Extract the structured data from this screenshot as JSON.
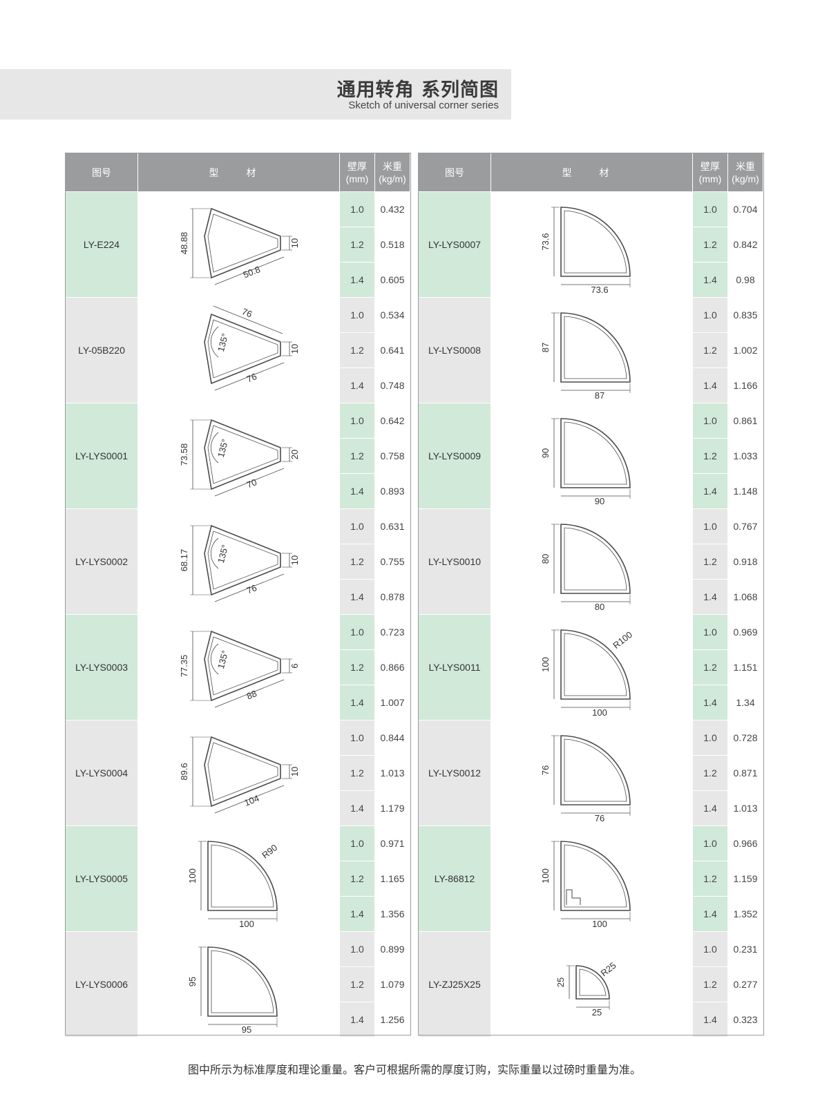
{
  "title": {
    "cn": "通用转角 系列简图",
    "en": "Sketch of universal corner series"
  },
  "headers": {
    "code": "图号",
    "shape": "型 材",
    "thickness": "壁厚",
    "thickness_unit": "(mm)",
    "weight": "米重",
    "weight_unit": "(kg/m)"
  },
  "left": [
    {
      "code": "LY-E224",
      "shape": "fan",
      "dims": {
        "h": "48.88",
        "w": "50.8",
        "tip": "10"
      },
      "rows": [
        {
          "t": "1.0",
          "w": "0.432"
        },
        {
          "t": "1.2",
          "w": "0.518"
        },
        {
          "t": "1.4",
          "w": "0.605"
        }
      ]
    },
    {
      "code": "LY-05B220",
      "shape": "fan",
      "dims": {
        "top": "76",
        "w": "76",
        "tip": "10",
        "angle": "135°"
      },
      "rows": [
        {
          "t": "1.0",
          "w": "0.534"
        },
        {
          "t": "1.2",
          "w": "0.641"
        },
        {
          "t": "1.4",
          "w": "0.748"
        }
      ]
    },
    {
      "code": "LY-LYS0001",
      "shape": "fan",
      "dims": {
        "h": "73.58",
        "w": "70",
        "tip": "20",
        "angle": "135°"
      },
      "rows": [
        {
          "t": "1.0",
          "w": "0.642"
        },
        {
          "t": "1.2",
          "w": "0.758"
        },
        {
          "t": "1.4",
          "w": "0.893"
        }
      ]
    },
    {
      "code": "LY-LYS0002",
      "shape": "fan",
      "dims": {
        "h": "68.17",
        "w": "76",
        "tip": "10",
        "angle": "135°"
      },
      "rows": [
        {
          "t": "1.0",
          "w": "0.631"
        },
        {
          "t": "1.2",
          "w": "0.755"
        },
        {
          "t": "1.4",
          "w": "0.878"
        }
      ]
    },
    {
      "code": "LY-LYS0003",
      "shape": "fan",
      "dims": {
        "h": "77.35",
        "w": "88",
        "tip": "6",
        "angle": "135°"
      },
      "rows": [
        {
          "t": "1.0",
          "w": "0.723"
        },
        {
          "t": "1.2",
          "w": "0.866"
        },
        {
          "t": "1.4",
          "w": "1.007"
        }
      ]
    },
    {
      "code": "LY-LYS0004",
      "shape": "fan",
      "dims": {
        "h": "89.6",
        "w": "104",
        "tip": "10"
      },
      "rows": [
        {
          "t": "1.0",
          "w": "0.844"
        },
        {
          "t": "1.2",
          "w": "1.013"
        },
        {
          "t": "1.4",
          "w": "1.179"
        }
      ]
    },
    {
      "code": "LY-LYS0005",
      "shape": "quarter",
      "dims": {
        "h": "100",
        "w": "100",
        "r": "R90"
      },
      "rows": [
        {
          "t": "1.0",
          "w": "0.971"
        },
        {
          "t": "1.2",
          "w": "1.165"
        },
        {
          "t": "1.4",
          "w": "1.356"
        }
      ]
    },
    {
      "code": "LY-LYS0006",
      "shape": "quarter",
      "dims": {
        "h": "95",
        "w": "95"
      },
      "rows": [
        {
          "t": "1.0",
          "w": "0.899"
        },
        {
          "t": "1.2",
          "w": "1.079"
        },
        {
          "t": "1.4",
          "w": "1.256"
        }
      ]
    }
  ],
  "right": [
    {
      "code": "LY-LYS0007",
      "shape": "quarter",
      "dims": {
        "h": "73.6",
        "w": "73.6"
      },
      "rows": [
        {
          "t": "1.0",
          "w": "0.704"
        },
        {
          "t": "1.2",
          "w": "0.842"
        },
        {
          "t": "1.4",
          "w": "0.98"
        }
      ]
    },
    {
      "code": "LY-LYS0008",
      "shape": "quarter",
      "dims": {
        "h": "87",
        "w": "87"
      },
      "rows": [
        {
          "t": "1.0",
          "w": "0.835"
        },
        {
          "t": "1.2",
          "w": "1.002"
        },
        {
          "t": "1.4",
          "w": "1.166"
        }
      ]
    },
    {
      "code": "LY-LYS0009",
      "shape": "quarter",
      "dims": {
        "h": "90",
        "w": "90"
      },
      "rows": [
        {
          "t": "1.0",
          "w": "0.861"
        },
        {
          "t": "1.2",
          "w": "1.033"
        },
        {
          "t": "1.4",
          "w": "1.148"
        }
      ]
    },
    {
      "code": "LY-LYS0010",
      "shape": "quarter",
      "dims": {
        "h": "80",
        "w": "80"
      },
      "rows": [
        {
          "t": "1.0",
          "w": "0.767"
        },
        {
          "t": "1.2",
          "w": "0.918"
        },
        {
          "t": "1.4",
          "w": "1.068"
        }
      ]
    },
    {
      "code": "LY-LYS0011",
      "shape": "quarter",
      "dims": {
        "h": "100",
        "w": "100",
        "r": "R100"
      },
      "rows": [
        {
          "t": "1.0",
          "w": "0.969"
        },
        {
          "t": "1.2",
          "w": "1.151"
        },
        {
          "t": "1.4",
          "w": "1.34"
        }
      ]
    },
    {
      "code": "LY-LYS0012",
      "shape": "quarter",
      "dims": {
        "h": "76",
        "w": "76"
      },
      "rows": [
        {
          "t": "1.0",
          "w": "0.728"
        },
        {
          "t": "1.2",
          "w": "0.871"
        },
        {
          "t": "1.4",
          "w": "1.013"
        }
      ]
    },
    {
      "code": "LY-86812",
      "shape": "quarter-step",
      "dims": {
        "h": "100",
        "w": "100"
      },
      "rows": [
        {
          "t": "1.0",
          "w": "0.966"
        },
        {
          "t": "1.2",
          "w": "1.159"
        },
        {
          "t": "1.4",
          "w": "1.352"
        }
      ]
    },
    {
      "code": "LY-ZJ25X25",
      "shape": "quarter-small",
      "dims": {
        "h": "25",
        "w": "25",
        "r": "R25"
      },
      "rows": [
        {
          "t": "1.0",
          "w": "0.231"
        },
        {
          "t": "1.2",
          "w": "0.277"
        },
        {
          "t": "1.4",
          "w": "0.323"
        }
      ]
    }
  ],
  "footnote": "图中所示为标准厚度和理论重量。客户可根据所需的厚度订购，实际重量以过磅时重量为准。"
}
